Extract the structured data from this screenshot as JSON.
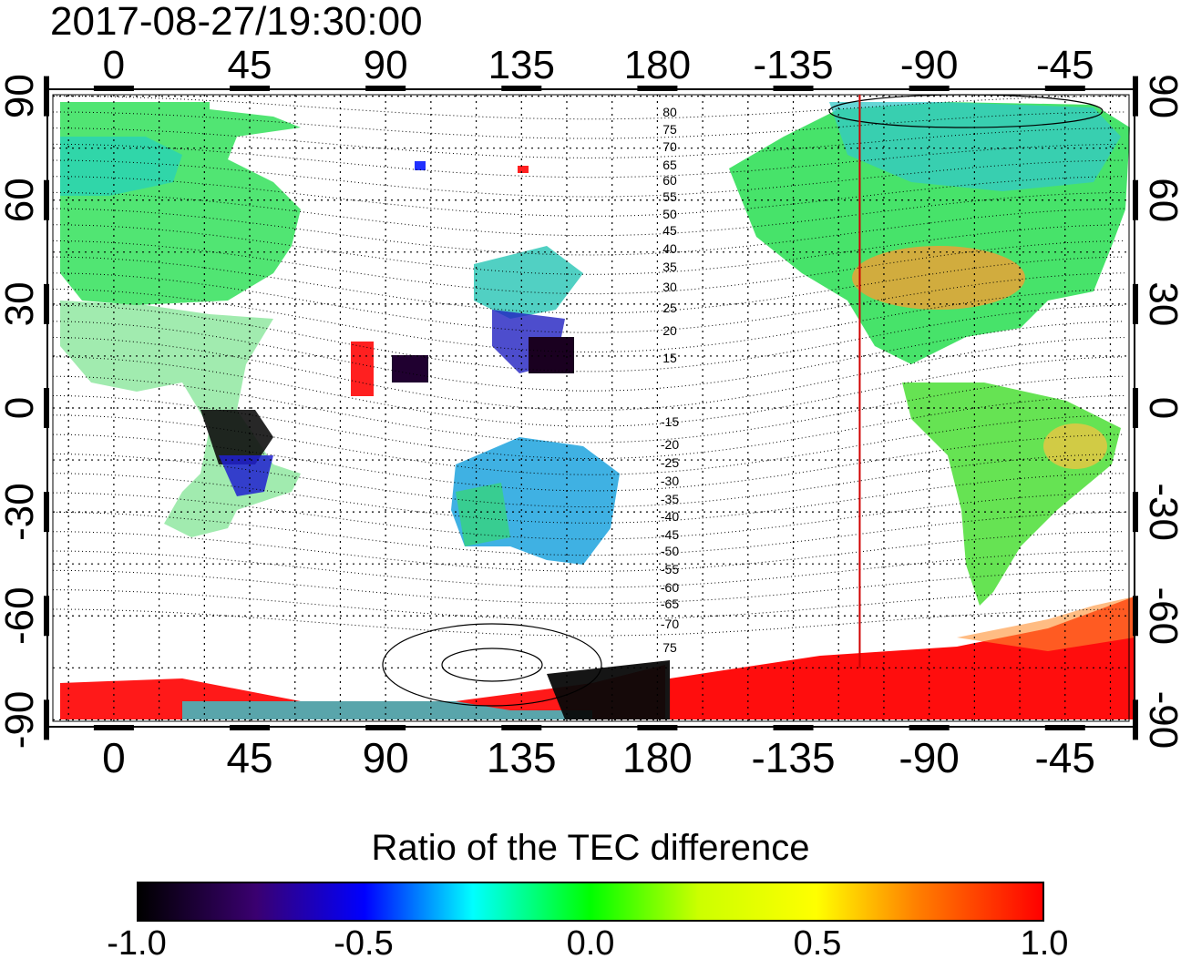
{
  "title": "2017-08-27/19:30:00",
  "map": {
    "top_lon_labels": [
      "0",
      "45",
      "90",
      "135",
      "180",
      "-135",
      "-90",
      "-45"
    ],
    "bottom_lon_labels": [
      "0",
      "45",
      "90",
      "135",
      "180",
      "-135",
      "-90",
      "-45"
    ],
    "left_lat_labels": [
      "90",
      "60",
      "30",
      "0",
      "-30",
      "-60",
      "-90"
    ],
    "right_lat_labels": [
      "90",
      "60",
      "30",
      "0",
      "-30",
      "-60",
      "-90"
    ],
    "lon_ticks": [
      0,
      45,
      90,
      135,
      180,
      225,
      270,
      315
    ],
    "lat_ticks": [
      90,
      60,
      30,
      0,
      -30,
      -60,
      -90
    ],
    "lon_range": [
      -22,
      338
    ],
    "lat_range": [
      -92,
      92
    ],
    "terminator_lon": 247,
    "dip_labels_north": [
      "80",
      "75",
      "70",
      "65",
      "60",
      "55",
      "50",
      "45",
      "40",
      "35",
      "30",
      "25",
      "20",
      "15"
    ],
    "dip_labels_south": [
      "-15",
      "-20",
      "-25",
      "-30",
      "-35",
      "-40",
      "-45",
      "-50",
      "-55",
      "-60",
      "-65",
      "-70",
      "75"
    ]
  },
  "colorbar": {
    "title": "Ratio of the TEC difference",
    "ticks": [
      "-1.0",
      "-0.5",
      "0.0",
      "0.5",
      "1.0"
    ],
    "tick_values": [
      -1.0,
      -0.5,
      0.0,
      0.5,
      1.0
    ],
    "colors": [
      "#000000",
      "#3a0070",
      "#0000ff",
      "#00ffff",
      "#00ff00",
      "#ffff00",
      "#ff8000",
      "#ff0000",
      "#ff0000"
    ]
  }
}
